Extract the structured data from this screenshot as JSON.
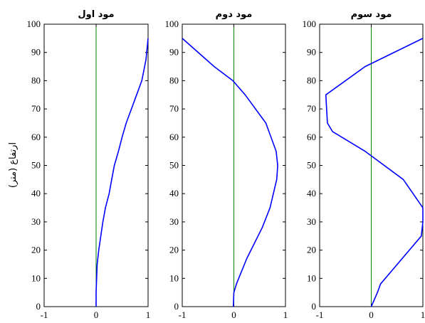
{
  "chart_data": {
    "type": "line",
    "ylabel": "ارتفاع (متر)",
    "xlim": [
      -1,
      1
    ],
    "ylim": [
      0,
      100
    ],
    "xticks": [
      -1,
      0,
      1
    ],
    "yticks": [
      0,
      10,
      20,
      30,
      40,
      50,
      60,
      70,
      80,
      90,
      100
    ],
    "grid": false,
    "line_color": "#0000ff",
    "zero_line_color": "#008000",
    "panels": [
      {
        "title": "مود اول",
        "series": [
          {
            "x": [
              0.0,
              0.0,
              0.01,
              0.02,
              0.05,
              0.09,
              0.13,
              0.18,
              0.25,
              0.3,
              0.35,
              0.43,
              0.5,
              0.58,
              0.68,
              0.78,
              0.88,
              0.96,
              1.0
            ],
            "y": [
              0,
              5,
              10,
              15,
              20,
              25,
              30,
              35,
              40,
              45,
              50,
              55,
              60,
              65,
              70,
              75,
              80,
              87.5,
              95
            ]
          }
        ]
      },
      {
        "title": "مود دوم",
        "series": [
          {
            "x": [
              -0.01,
              0.0,
              0.05,
              0.25,
              0.55,
              0.7,
              0.83,
              0.85,
              0.82,
              0.62,
              0.22,
              -0.02,
              -0.38,
              -1.0
            ],
            "y": [
              0,
              5,
              8,
              17,
              28,
              35,
              45,
              50,
              55,
              65,
              75,
              80,
              85,
              95
            ]
          }
        ]
      },
      {
        "title": "مود سوم",
        "series": [
          {
            "x": [
              0.0,
              0.12,
              0.18,
              0.97,
              1.0,
              1.0,
              0.62,
              -0.12,
              -0.75,
              -0.85,
              -0.88,
              -0.12,
              1.0
            ],
            "y": [
              0,
              5,
              8,
              25,
              30,
              35,
              45,
              55,
              62,
              65,
              75,
              85,
              95
            ]
          }
        ]
      }
    ]
  }
}
